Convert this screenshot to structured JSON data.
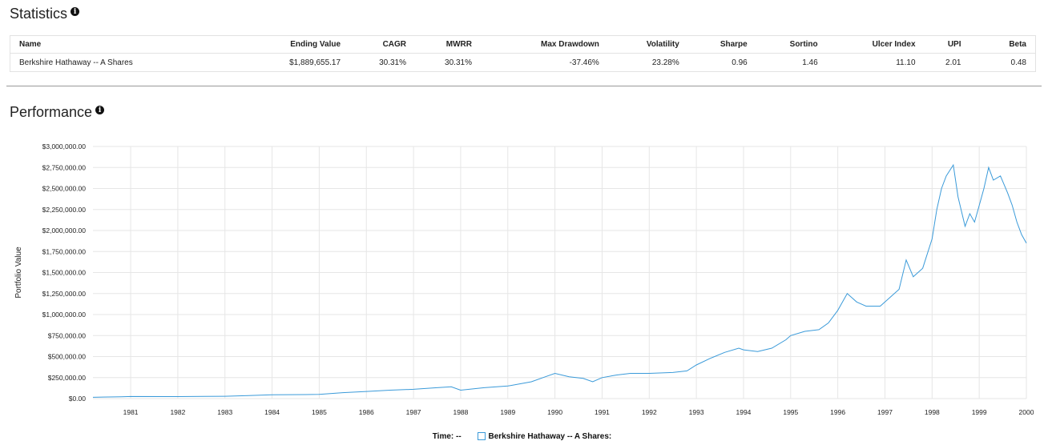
{
  "statistics": {
    "title": "Statistics",
    "columns": [
      "Name",
      "Ending Value",
      "CAGR",
      "MWRR",
      "Max Drawdown",
      "Volatility",
      "Sharpe",
      "Sortino",
      "Ulcer Index",
      "UPI",
      "Beta"
    ],
    "row": [
      "Berkshire Hathaway -- A Shares",
      "$1,889,655.17",
      "30.31%",
      "30.31%",
      "-37.46%",
      "23.28%",
      "0.96",
      "1.46",
      "11.10",
      "2.01",
      "0.48"
    ]
  },
  "performance": {
    "title": "Performance"
  },
  "legend": {
    "time_label": "Time:",
    "time_value": "--",
    "series_label": "Berkshire Hathaway -- A Shares:"
  },
  "chart_data": {
    "type": "line",
    "ylabel": "Portfolio Value",
    "xlabel": "",
    "x_ticks": [
      "1981",
      "1982",
      "1983",
      "1984",
      "1985",
      "1986",
      "1987",
      "1988",
      "1989",
      "1990",
      "1991",
      "1992",
      "1993",
      "1994",
      "1995",
      "1996",
      "1997",
      "1998",
      "1999",
      "2000"
    ],
    "y_ticks": [
      "$0.00",
      "$250,000.00",
      "$500,000.00",
      "$750,000.00",
      "$1,000,000.00",
      "$1,250,000.00",
      "$1,500,000.00",
      "$1,750,000.00",
      "$2,000,000.00",
      "$2,250,000.00",
      "$2,500,000.00",
      "$2,750,000.00",
      "$3,000,000.00"
    ],
    "xlim": [
      1980.2,
      2000.0
    ],
    "ylim": [
      0,
      3000000
    ],
    "grid": true,
    "series": [
      {
        "name": "Berkshire Hathaway -- A Shares",
        "color": "#3a9ad9",
        "x": [
          1980.2,
          1980.8,
          1981.0,
          1982.0,
          1983.0,
          1983.5,
          1984.0,
          1985.0,
          1985.5,
          1986.0,
          1986.5,
          1987.0,
          1987.5,
          1987.8,
          1988.0,
          1988.5,
          1989.0,
          1989.5,
          1989.8,
          1990.0,
          1990.3,
          1990.6,
          1990.8,
          1991.0,
          1991.3,
          1991.6,
          1992.0,
          1992.5,
          1992.8,
          1993.0,
          1993.3,
          1993.6,
          1993.9,
          1994.0,
          1994.3,
          1994.6,
          1994.9,
          1995.0,
          1995.3,
          1995.6,
          1995.8,
          1996.0,
          1996.2,
          1996.4,
          1996.6,
          1996.9,
          1997.0,
          1997.3,
          1997.45,
          1997.6,
          1997.8,
          1998.0,
          1998.1,
          1998.2,
          1998.3,
          1998.45,
          1998.55,
          1998.7,
          1998.8,
          1998.9,
          1999.0,
          1999.1,
          1999.2,
          1999.3,
          1999.45,
          1999.6,
          1999.7,
          1999.8,
          1999.9,
          2000.0
        ],
        "y": [
          15000,
          22000,
          25000,
          24000,
          28000,
          35000,
          45000,
          50000,
          70000,
          85000,
          100000,
          110000,
          130000,
          140000,
          100000,
          130000,
          150000,
          200000,
          260000,
          300000,
          260000,
          240000,
          200000,
          250000,
          280000,
          300000,
          300000,
          310000,
          330000,
          400000,
          480000,
          550000,
          600000,
          580000,
          560000,
          600000,
          700000,
          750000,
          800000,
          820000,
          900000,
          1050000,
          1250000,
          1150000,
          1100000,
          1100000,
          1150000,
          1300000,
          1650000,
          1450000,
          1550000,
          1900000,
          2250000,
          2500000,
          2650000,
          2780000,
          2400000,
          2050000,
          2200000,
          2100000,
          2300000,
          2500000,
          2750000,
          2600000,
          2650000,
          2450000,
          2300000,
          2100000,
          1950000,
          1850000
        ]
      }
    ]
  }
}
